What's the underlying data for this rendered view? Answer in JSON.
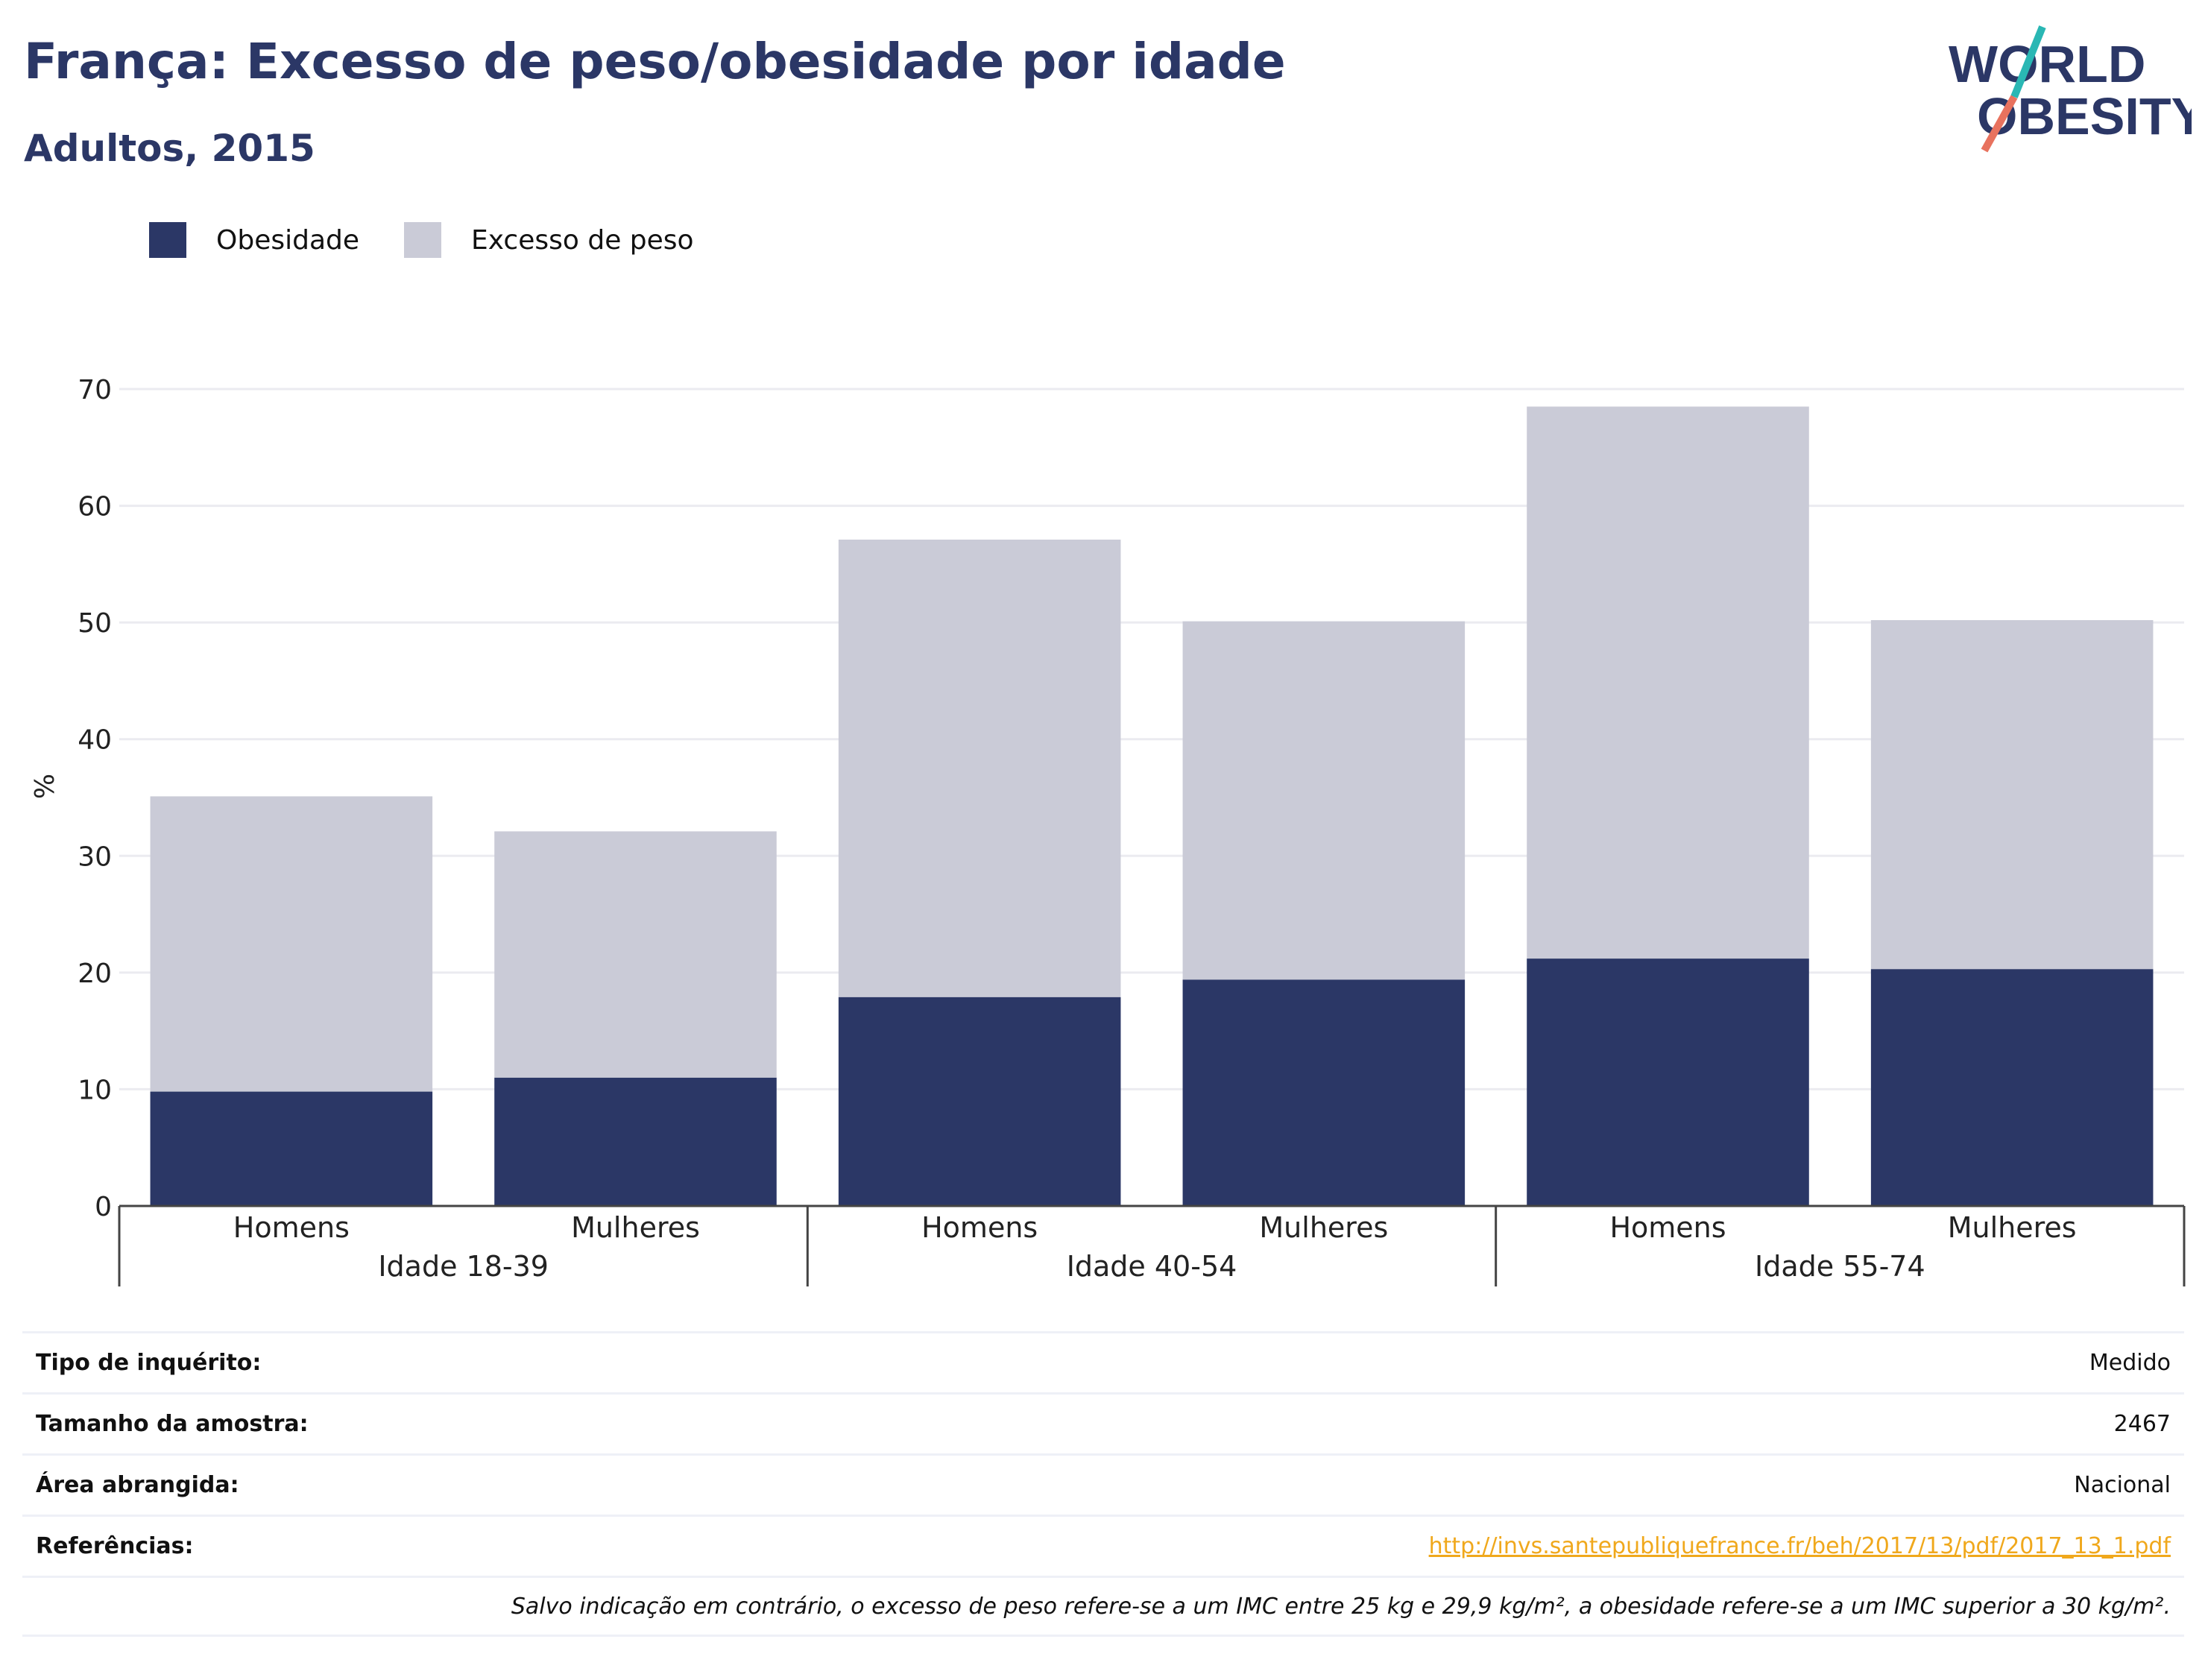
{
  "header": {
    "title": "França: Excesso de peso/obesidade por idade",
    "subtitle": "Adultos, 2015"
  },
  "logo": {
    "line1": "WORLD",
    "line2": "OBESITY"
  },
  "colors": {
    "obesity": "#2b3766",
    "overweight": "#cacbd7",
    "accent_teal": "#2ab7b4",
    "accent_coral": "#e8725e",
    "link": "#f0a81c"
  },
  "legend": [
    {
      "label": "Obesidade",
      "color": "#2b3766"
    },
    {
      "label": "Excesso de peso",
      "color": "#cacbd7"
    }
  ],
  "chart_data": {
    "type": "bar",
    "stacked": true,
    "ylabel": "%",
    "ylim": [
      0,
      70
    ],
    "yticks": [
      0,
      10,
      20,
      30,
      40,
      50,
      60,
      70
    ],
    "grid": true,
    "legend_position": "top-left",
    "groups": [
      {
        "label": "Idade 18-39",
        "categories": [
          "Homens",
          "Mulheres"
        ]
      },
      {
        "label": "Idade 40-54",
        "categories": [
          "Homens",
          "Mulheres"
        ]
      },
      {
        "label": "Idade 55-74",
        "categories": [
          "Homens",
          "Mulheres"
        ]
      }
    ],
    "categories": [
      "Homens",
      "Mulheres",
      "Homens",
      "Mulheres",
      "Homens",
      "Mulheres"
    ],
    "series": [
      {
        "name": "Obesidade",
        "values": [
          9.8,
          11.0,
          17.9,
          19.4,
          21.2,
          20.3
        ]
      },
      {
        "name": "Excesso de peso",
        "values": [
          25.3,
          21.1,
          39.2,
          30.7,
          47.3,
          29.9
        ]
      }
    ]
  },
  "info": {
    "rows": [
      {
        "label": "Tipo de inquérito:",
        "value": "Medido"
      },
      {
        "label": "Tamanho da amostra:",
        "value": "2467"
      },
      {
        "label": "Área abrangida:",
        "value": "Nacional"
      }
    ],
    "references_label": "Referências:",
    "references_link": "http://invs.santepubliquefrance.fr/beh/2017/13/pdf/2017_13_1.pdf",
    "note": "Salvo indicação em contrário, o excesso de peso refere-se a um IMC entre 25 kg e 29,9 kg/m², a obesidade refere-se a um IMC superior a 30 kg/m²."
  }
}
